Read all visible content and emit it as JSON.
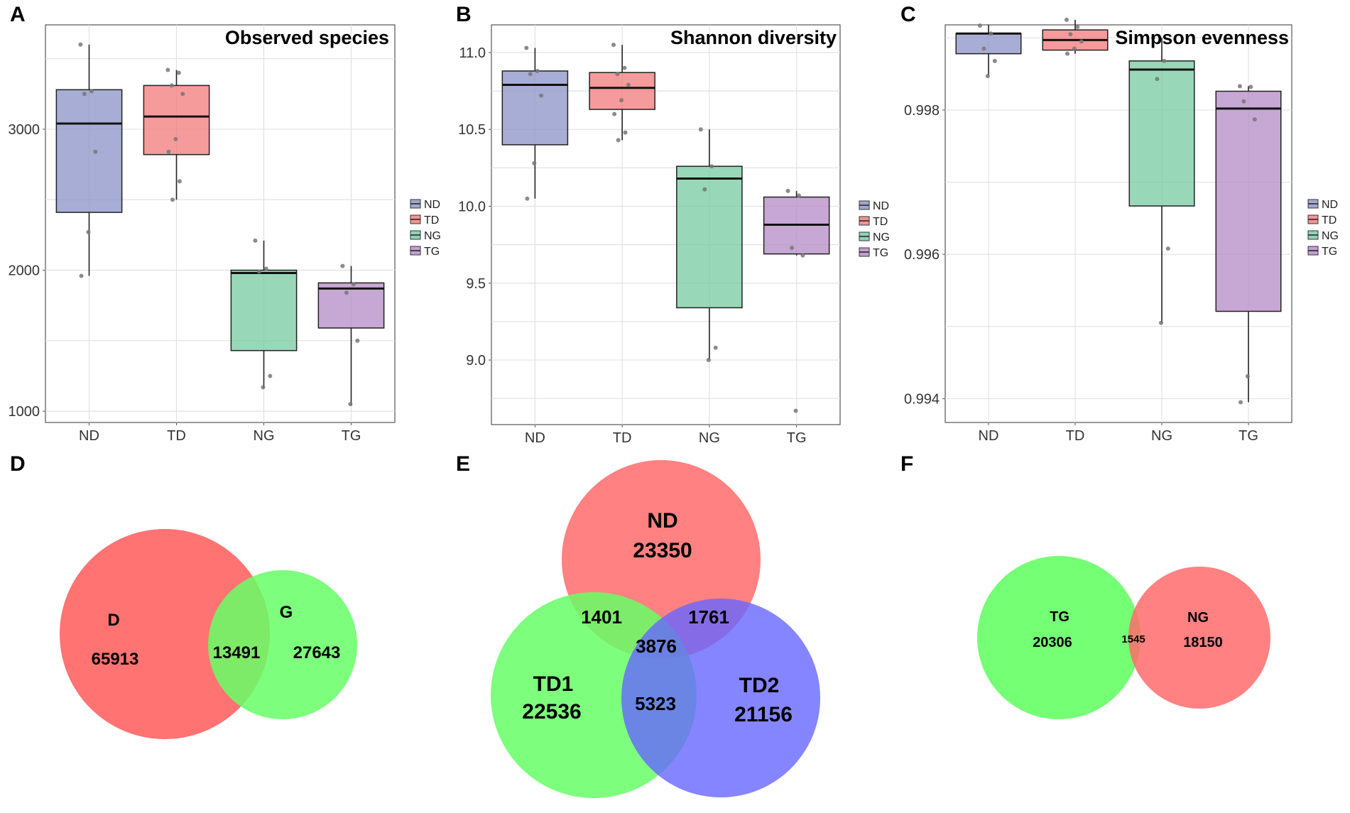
{
  "panel_labels": [
    "A",
    "B",
    "C",
    "D",
    "E",
    "F"
  ],
  "colors": {
    "ND": "#8b92c7",
    "TD": "#f37a7a",
    "NG": "#76c9a0",
    "TG": "#b48ac4",
    "venn_red": "#ff6b6b",
    "venn_green": "#66ff66",
    "venn_blue": "#6666ff"
  },
  "chart_data": [
    {
      "type": "box",
      "title": "Observed species",
      "categories": [
        "ND",
        "TD",
        "NG",
        "TG"
      ],
      "legend": [
        "ND",
        "TD",
        "NG",
        "TG"
      ],
      "yticks": [
        1000,
        2000,
        3000
      ],
      "ylim": [
        920,
        3740
      ],
      "boxes": [
        {
          "min": 1960,
          "q1": 2410,
          "median": 3040,
          "q3": 3280,
          "max": 3600
        },
        {
          "min": 2500,
          "q1": 2820,
          "median": 3090,
          "q3": 3310,
          "max": 3420
        },
        {
          "min": 1160,
          "q1": 1430,
          "median": 1980,
          "q3": 2000,
          "max": 2210
        },
        {
          "min": 1040,
          "q1": 1590,
          "median": 1870,
          "q3": 1910,
          "max": 2030
        }
      ],
      "points": [
        [
          3600,
          3270,
          3250,
          2840,
          2270,
          1960
        ],
        [
          3420,
          3400,
          3310,
          3250,
          2930,
          2840,
          2630,
          2500
        ],
        [
          2210,
          2010,
          1990,
          1250,
          1170
        ],
        [
          2030,
          1900,
          1840,
          1500,
          1050
        ]
      ]
    },
    {
      "type": "box",
      "title": "Shannon diversity",
      "categories": [
        "ND",
        "TD",
        "NG",
        "TG"
      ],
      "legend": [
        "ND",
        "TD",
        "NG",
        "TG"
      ],
      "yticks": [
        "9.0",
        "9.5",
        "10.0",
        "10.5",
        "11.0"
      ],
      "ylim": [
        8.58,
        11.18
      ],
      "boxes": [
        {
          "min": 10.05,
          "q1": 10.4,
          "median": 10.79,
          "q3": 10.88,
          "max": 11.03
        },
        {
          "min": 10.43,
          "q1": 10.63,
          "median": 10.77,
          "q3": 10.87,
          "max": 11.05
        },
        {
          "min": 9.0,
          "q1": 9.34,
          "median": 10.18,
          "q3": 10.26,
          "max": 10.5
        },
        {
          "min": 9.68,
          "q1": 9.69,
          "median": 9.88,
          "q3": 10.06,
          "max": 10.1
        }
      ],
      "points": [
        [
          11.03,
          10.88,
          10.86,
          10.72,
          10.28,
          10.05
        ],
        [
          11.05,
          10.9,
          10.86,
          10.79,
          10.69,
          10.6,
          10.48,
          10.43
        ],
        [
          10.5,
          10.26,
          10.11,
          9.08,
          9.0
        ],
        [
          10.1,
          10.07,
          9.73,
          9.68,
          8.67
        ]
      ]
    },
    {
      "type": "box",
      "title": "Simpson evenness",
      "categories": [
        "ND",
        "TD",
        "NG",
        "TG"
      ],
      "legend": [
        "ND",
        "TD",
        "NG",
        "TG"
      ],
      "yticks": [
        "0.994",
        "0.996",
        "0.998"
      ],
      "ylim": [
        0.99367,
        0.99918
      ],
      "boxes": [
        {
          "min": 0.99848,
          "q1": 0.99878,
          "median": 0.99906,
          "q3": 0.99906,
          "max": 0.99918
        },
        {
          "min": 0.99878,
          "q1": 0.99883,
          "median": 0.99897,
          "q3": 0.99911,
          "max": 0.99925
        },
        {
          "min": 0.99505,
          "q1": 0.99667,
          "median": 0.99856,
          "q3": 0.99868,
          "max": 0.999
        },
        {
          "min": 0.99395,
          "q1": 0.99521,
          "median": 0.99802,
          "q3": 0.99826,
          "max": 0.99833
        }
      ],
      "points": [
        [
          0.99917,
          0.99906,
          0.99885,
          0.99868,
          0.99847
        ],
        [
          0.99925,
          0.99915,
          0.99905,
          0.99895,
          0.99885,
          0.99878
        ],
        [
          0.999,
          0.99868,
          0.99843,
          0.99608,
          0.99505
        ],
        [
          0.99833,
          0.99832,
          0.99812,
          0.99787,
          0.99431,
          0.99395
        ]
      ]
    }
  ],
  "venn_d": {
    "left_label": "D",
    "right_label": "G",
    "left_only": "65913",
    "overlap": "13491",
    "right_only": "27643"
  },
  "venn_e": {
    "top_label": "ND",
    "top_only": "23350",
    "left_label": "TD1",
    "left_only": "22536",
    "right_label": "TD2",
    "right_only": "21156",
    "top_left": "1401",
    "top_right": "1761",
    "left_right": "5323",
    "center": "3876"
  },
  "venn_f": {
    "left_label": "TG",
    "left_only": "20306",
    "overlap": "1545",
    "right_label": "NG",
    "right_only": "18150"
  }
}
